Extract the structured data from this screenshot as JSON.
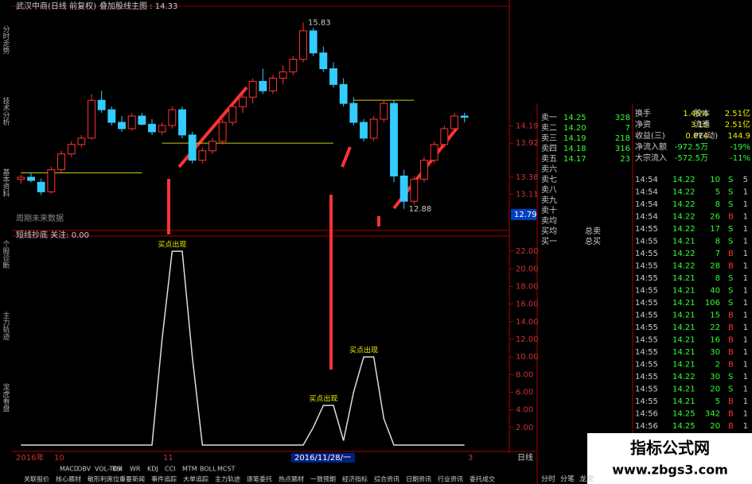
{
  "header": {
    "title": "武汉中商(日线 前复权)",
    "overlay": "叠加股线主图 : 14.33"
  },
  "left_tabs": [
    "分时走势",
    "技术分析",
    "基本资料",
    "个股诊断",
    "主力轨迹",
    "龙虎看盘"
  ],
  "price_chart": {
    "ylim": [
      12.6,
      16.0
    ],
    "yticks": [
      14.19,
      13.92,
      13.38,
      13.11
    ],
    "cursor_price": 12.79,
    "support_levels": [
      13.45,
      13.92,
      14.6
    ],
    "high_label": "15.83",
    "low_label": "12.88",
    "note": "周期未来数据",
    "candles": [
      [
        13.35,
        13.42,
        13.28,
        13.38
      ],
      [
        13.38,
        13.45,
        13.3,
        13.33
      ],
      [
        13.3,
        13.36,
        13.1,
        13.15
      ],
      [
        13.15,
        13.55,
        13.12,
        13.5
      ],
      [
        13.5,
        13.8,
        13.45,
        13.75
      ],
      [
        13.75,
        13.95,
        13.7,
        13.9
      ],
      [
        13.9,
        14.05,
        13.85,
        14.0
      ],
      [
        14.0,
        14.7,
        13.98,
        14.6
      ],
      [
        14.6,
        14.75,
        14.4,
        14.45
      ],
      [
        14.45,
        14.5,
        14.2,
        14.25
      ],
      [
        14.25,
        14.35,
        14.1,
        14.15
      ],
      [
        14.15,
        14.4,
        14.12,
        14.35
      ],
      [
        14.35,
        14.4,
        14.2,
        14.22
      ],
      [
        14.22,
        14.3,
        14.05,
        14.1
      ],
      [
        14.1,
        14.25,
        14.05,
        14.2
      ],
      [
        14.2,
        14.5,
        14.15,
        14.45
      ],
      [
        14.45,
        14.5,
        14.0,
        14.05
      ],
      [
        14.05,
        14.1,
        13.6,
        13.65
      ],
      [
        13.65,
        13.85,
        13.6,
        13.8
      ],
      [
        13.8,
        14.0,
        13.75,
        13.95
      ],
      [
        13.95,
        14.3,
        13.9,
        14.25
      ],
      [
        14.25,
        14.55,
        14.2,
        14.5
      ],
      [
        14.5,
        14.7,
        14.4,
        14.65
      ],
      [
        14.65,
        14.95,
        14.55,
        14.9
      ],
      [
        14.9,
        15.1,
        14.7,
        14.75
      ],
      [
        14.75,
        15.0,
        14.7,
        14.95
      ],
      [
        14.95,
        15.15,
        14.85,
        15.05
      ],
      [
        15.05,
        15.3,
        15.0,
        15.25
      ],
      [
        15.25,
        15.83,
        15.2,
        15.7
      ],
      [
        15.7,
        15.75,
        15.3,
        15.35
      ],
      [
        15.35,
        15.45,
        15.05,
        15.1
      ],
      [
        15.1,
        15.2,
        14.8,
        14.85
      ],
      [
        14.85,
        14.95,
        14.5,
        14.55
      ],
      [
        14.55,
        14.65,
        14.2,
        14.25
      ],
      [
        14.25,
        14.3,
        13.95,
        14.0
      ],
      [
        14.0,
        14.35,
        13.95,
        14.3
      ],
      [
        14.3,
        14.6,
        14.25,
        14.55
      ],
      [
        14.55,
        14.6,
        13.3,
        13.4
      ],
      [
        13.4,
        13.5,
        12.88,
        13.0
      ],
      [
        13.0,
        13.4,
        12.95,
        13.35
      ],
      [
        13.35,
        13.7,
        13.3,
        13.65
      ],
      [
        13.65,
        13.95,
        13.6,
        13.9
      ],
      [
        13.9,
        14.2,
        13.85,
        14.15
      ],
      [
        14.15,
        14.4,
        14.1,
        14.35
      ],
      [
        14.35,
        14.4,
        14.25,
        14.33
      ]
    ]
  },
  "indicator": {
    "title": "短线抄底 关注: 0.00",
    "ylim": [
      0,
      23
    ],
    "yticks": [
      {
        "value": 22,
        "label": "22.00"
      },
      {
        "value": 20,
        "label": "20.00"
      },
      {
        "value": 18,
        "label": "18.00"
      },
      {
        "value": 16,
        "label": "16.00"
      },
      {
        "value": 14,
        "label": "14.00"
      },
      {
        "value": 12,
        "label": "12.00"
      },
      {
        "value": 10,
        "label": "10.00"
      },
      {
        "value": 8,
        "label": "8.00"
      },
      {
        "value": 6,
        "label": "6.00"
      },
      {
        "value": 4,
        "label": "4.00"
      },
      {
        "value": 2,
        "label": "2.00"
      }
    ],
    "values": [
      0,
      0,
      0,
      0,
      0,
      0,
      0,
      0,
      0,
      0,
      0,
      0,
      0,
      0,
      12,
      22,
      22,
      10,
      0,
      0,
      0,
      0,
      0,
      0,
      0,
      0,
      0,
      0,
      0,
      2,
      4.5,
      4.5,
      0.5,
      6,
      10,
      10,
      3,
      0,
      0,
      0,
      0,
      0,
      0,
      0,
      0
    ],
    "signal": "买点出现",
    "date": "2016/11/28/一",
    "x_labels": [
      "2016年",
      "10",
      "11",
      "3"
    ]
  },
  "order_book": {
    "sell": [
      [
        "卖一",
        "14.25",
        "328"
      ],
      [
        "卖二",
        "14.20",
        "7"
      ],
      [
        "卖三",
        "14.19",
        "218"
      ],
      [
        "卖四",
        "14.18",
        "316"
      ],
      [
        "卖五",
        "14.17",
        "23"
      ]
    ],
    "labels": [
      "卖六",
      "卖七",
      "卖八",
      "卖九",
      "卖十",
      "卖均",
      "买均",
      "买一"
    ],
    "avg": [
      "总卖",
      "总买"
    ]
  },
  "stats": [
    [
      "换手",
      "1.46%",
      "股本",
      "2.51亿"
    ],
    [
      "净资",
      "3.15",
      "流通",
      "2.51亿"
    ],
    [
      "收益(三)",
      "0.074",
      "PE(动)",
      "144.9"
    ],
    [
      "净流入额",
      "-972.5万",
      "-19%"
    ],
    [
      "大宗流入",
      "-572.5万",
      "-11%"
    ]
  ],
  "ticks": [
    [
      "14:54",
      "14.22",
      "10",
      "S",
      "5"
    ],
    [
      "14:54",
      "14.22",
      "5",
      "S",
      "1"
    ],
    [
      "14:54",
      "14.22",
      "8",
      "S",
      "1"
    ],
    [
      "14:54",
      "14.22",
      "26",
      "B",
      "1"
    ],
    [
      "14:55",
      "14.22",
      "17",
      "S",
      "1"
    ],
    [
      "14:55",
      "14.21",
      "8",
      "S",
      "1"
    ],
    [
      "14:55",
      "14.22",
      "7",
      "B",
      "1"
    ],
    [
      "14:55",
      "14.22",
      "28",
      "B",
      "1"
    ],
    [
      "14:55",
      "14.21",
      "8",
      "S",
      "1"
    ],
    [
      "14:55",
      "14.21",
      "40",
      "S",
      "1"
    ],
    [
      "14:55",
      "14.21",
      "106",
      "S",
      "1"
    ],
    [
      "14:55",
      "14.21",
      "15",
      "B",
      "1"
    ],
    [
      "14:55",
      "14.21",
      "22",
      "B",
      "1"
    ],
    [
      "14:55",
      "14.21",
      "16",
      "B",
      "1"
    ],
    [
      "14:55",
      "14.21",
      "30",
      "B",
      "1"
    ],
    [
      "14:55",
      "14.21",
      "2",
      "B",
      "1"
    ],
    [
      "14:55",
      "14.22",
      "30",
      "S",
      "1"
    ],
    [
      "14:55",
      "14.21",
      "20",
      "S",
      "1"
    ],
    [
      "14:55",
      "14.21",
      "5",
      "B",
      "1"
    ],
    [
      "14:56",
      "14.25",
      "342",
      "B",
      "1"
    ],
    [
      "14:56",
      "14.25",
      "20",
      "B",
      "1"
    ]
  ],
  "indicator_tabs": [
    "MACD",
    "OBV",
    "VOL-TDX",
    "RSI",
    "WR",
    "KDJ",
    "CCI",
    "MTM",
    "BOLL",
    "MCST"
  ],
  "bottom_tabs": [
    "关联报价",
    "核心题材",
    "敏形利席位",
    "重要新闻",
    "事件追踪",
    "大单追踪",
    "主力轨迹",
    "逐笔委托",
    "热点题材",
    "一致预期",
    "经济指标",
    "综合资讯",
    "日期资讯",
    "行业资讯",
    "委托成交"
  ],
  "period": "日线",
  "side_tabs": [
    "分时",
    "分笔",
    "龙虎"
  ],
  "watermark": {
    "title": "指标公式网",
    "url": "www.zbgs3.com"
  }
}
